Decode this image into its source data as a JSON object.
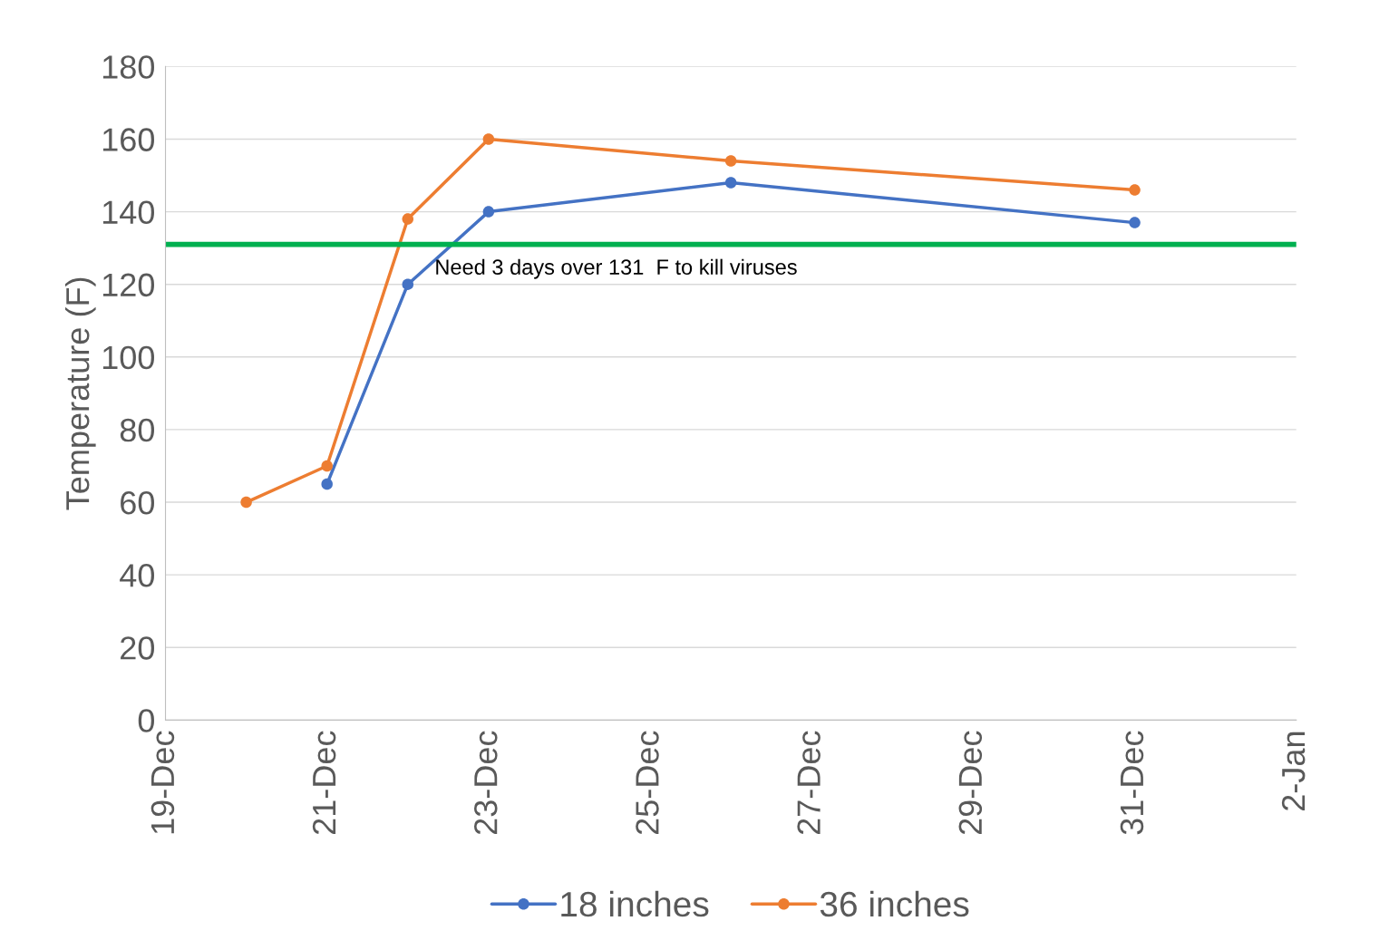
{
  "chart_data": {
    "type": "line",
    "ylabel": "Temperature (F)",
    "categories": [
      "19-Dec",
      null,
      "21-Dec",
      null,
      "23-Dec",
      null,
      "25-Dec",
      null,
      "27-Dec",
      null,
      "29-Dec",
      null,
      "31-Dec",
      null,
      "2-Jan"
    ],
    "series": [
      {
        "name": "18 inches",
        "color": "#4472c4",
        "values": [
          null,
          null,
          65,
          120,
          140,
          null,
          null,
          148,
          null,
          null,
          null,
          null,
          137,
          null,
          null
        ]
      },
      {
        "name": "36 inches",
        "color": "#ed7d31",
        "values": [
          null,
          60,
          70,
          138,
          160,
          null,
          null,
          154,
          null,
          null,
          null,
          null,
          146,
          null,
          null
        ]
      }
    ],
    "ylim": [
      0,
      180
    ],
    "yticks": [
      0,
      20,
      40,
      60,
      80,
      100,
      120,
      140,
      160,
      180
    ],
    "ref_lines": [
      {
        "axis": "y",
        "value": 131,
        "label": "Need 3 days over 131  F to kill viruses",
        "color": "#00b050"
      }
    ],
    "grid": "y",
    "legend": "bottom",
    "marker": "circle",
    "line_style": "solid"
  }
}
